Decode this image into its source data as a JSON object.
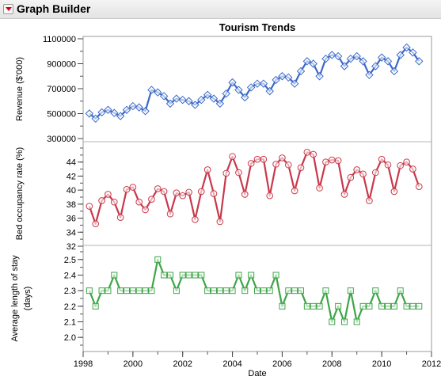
{
  "window": {
    "title": "Graph Builder"
  },
  "chart_data": {
    "type": "line",
    "title": "Tourism Trends",
    "xlabel": "Date",
    "xlim": [
      1998,
      2012
    ],
    "x_ticks": [
      "1998",
      "2000",
      "2002",
      "2004",
      "2006",
      "2008",
      "2010",
      "2012"
    ],
    "x": [
      1998.25,
      1998.5,
      1998.75,
      1999.0,
      1999.25,
      1999.5,
      1999.75,
      2000.0,
      2000.25,
      2000.5,
      2000.75,
      2001.0,
      2001.25,
      2001.5,
      2001.75,
      2002.0,
      2002.25,
      2002.5,
      2002.75,
      2003.0,
      2003.25,
      2003.5,
      2003.75,
      2004.0,
      2004.25,
      2004.5,
      2004.75,
      2005.0,
      2005.25,
      2005.5,
      2005.75,
      2006.0,
      2006.25,
      2006.5,
      2006.75,
      2007.0,
      2007.25,
      2007.5,
      2007.75,
      2008.0,
      2008.25,
      2008.5,
      2008.75,
      2009.0,
      2009.25,
      2009.5,
      2009.75,
      2010.0,
      2010.25,
      2010.5,
      2010.75,
      2011.0,
      2011.25,
      2011.5
    ],
    "panels": [
      {
        "ylabel": [
          "Revenue ($'000)"
        ],
        "ylim": [
          300000,
          1100000
        ],
        "y_ticks": [
          "1100000",
          "900000",
          "700000",
          "500000",
          "300000"
        ],
        "series": [
          {
            "color": "#3a68c8",
            "marker": "diamond",
            "values": [
              500000,
              460000,
              510000,
              530000,
              505000,
              480000,
              530000,
              560000,
              550000,
              520000,
              690000,
              670000,
              640000,
              580000,
              620000,
              610000,
              600000,
              570000,
              610000,
              650000,
              620000,
              580000,
              660000,
              750000,
              690000,
              630000,
              710000,
              740000,
              740000,
              680000,
              770000,
              800000,
              790000,
              740000,
              840000,
              920000,
              900000,
              800000,
              940000,
              970000,
              960000,
              880000,
              940000,
              960000,
              920000,
              810000,
              880000,
              950000,
              920000,
              840000,
              970000,
              1030000,
              990000,
              920000
            ]
          }
        ]
      },
      {
        "ylabel": [
          "Bed occupancy rate (%)"
        ],
        "ylim": [
          32,
          46
        ],
        "y_ticks": [
          "44",
          "42",
          "40",
          "38",
          "36",
          "34",
          "32"
        ],
        "series": [
          {
            "color": "#c8384a",
            "marker": "circle",
            "values": [
              37.7,
              35.2,
              38.5,
              39.4,
              38.3,
              36.1,
              40.1,
              40.4,
              38.3,
              37.2,
              38.7,
              40.2,
              39.8,
              36.6,
              39.6,
              39.2,
              39.7,
              35.8,
              39.8,
              42.9,
              39.5,
              35.5,
              42.4,
              44.8,
              42.5,
              39.4,
              43.8,
              44.4,
              44.4,
              39.2,
              43.7,
              44.6,
              43.6,
              39.9,
              43.2,
              45.4,
              45.1,
              40.3,
              44.0,
              44.3,
              44.2,
              39.4,
              41.8,
              42.9,
              42.3,
              38.5,
              42.5,
              44.4,
              43.6,
              39.8,
              43.5,
              44.0,
              43.0,
              40.5
            ]
          }
        ]
      },
      {
        "ylabel": [
          "Average length of stay",
          "(days)"
        ],
        "ylim": [
          1.95,
          2.55
        ],
        "y_ticks": [
          "2.5",
          "2.4",
          "2.3",
          "2.2",
          "2.1",
          "2.0"
        ],
        "series": [
          {
            "color": "#3da547",
            "marker": "square",
            "values": [
              2.3,
              2.2,
              2.3,
              2.3,
              2.4,
              2.3,
              2.3,
              2.3,
              2.3,
              2.3,
              2.3,
              2.5,
              2.4,
              2.4,
              2.3,
              2.4,
              2.4,
              2.4,
              2.4,
              2.3,
              2.3,
              2.3,
              2.3,
              2.3,
              2.4,
              2.3,
              2.4,
              2.3,
              2.3,
              2.3,
              2.4,
              2.2,
              2.3,
              2.3,
              2.3,
              2.2,
              2.2,
              2.2,
              2.3,
              2.1,
              2.2,
              2.1,
              2.3,
              2.1,
              2.2,
              2.2,
              2.3,
              2.2,
              2.2,
              2.2,
              2.3,
              2.2,
              2.2,
              2.2
            ]
          }
        ]
      }
    ]
  }
}
